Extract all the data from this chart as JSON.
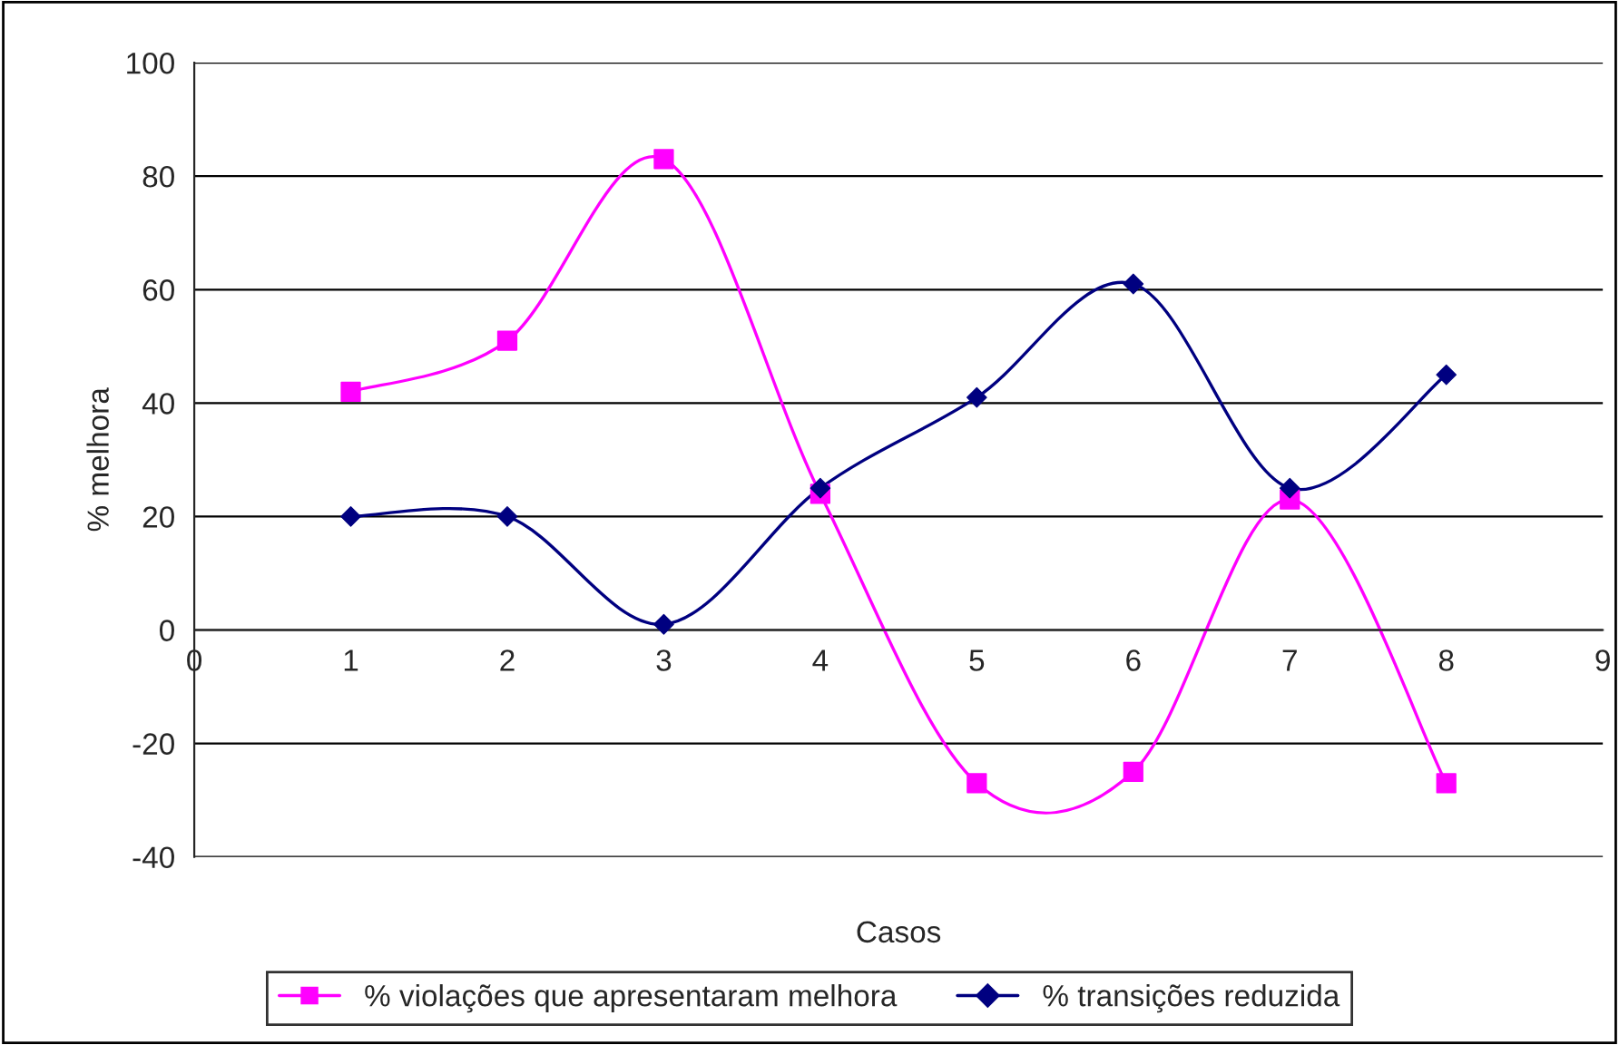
{
  "chart_data": {
    "type": "line",
    "xlabel": "Casos",
    "ylabel": "% melhora",
    "x": [
      1,
      2,
      3,
      4,
      5,
      6,
      7,
      8
    ],
    "series": [
      {
        "name": "% violações que apresentaram melhora",
        "color": "#ff00ff",
        "marker": "square",
        "values": [
          42,
          51,
          83,
          24,
          -27,
          -25,
          23,
          -27
        ]
      },
      {
        "name": "% transições reduzida",
        "color": "#000080",
        "marker": "diamond",
        "values": [
          20,
          20,
          1,
          25,
          41,
          61,
          25,
          45
        ]
      }
    ],
    "xlim": [
      0,
      9
    ],
    "xticks": [
      0,
      1,
      2,
      3,
      4,
      5,
      6,
      7,
      8,
      9
    ],
    "ylim": [
      -40,
      100
    ],
    "yticks": [
      -40,
      -20,
      0,
      20,
      40,
      60,
      80,
      100
    ],
    "grid": "y",
    "legend": "bottom",
    "line_style": "solid"
  }
}
